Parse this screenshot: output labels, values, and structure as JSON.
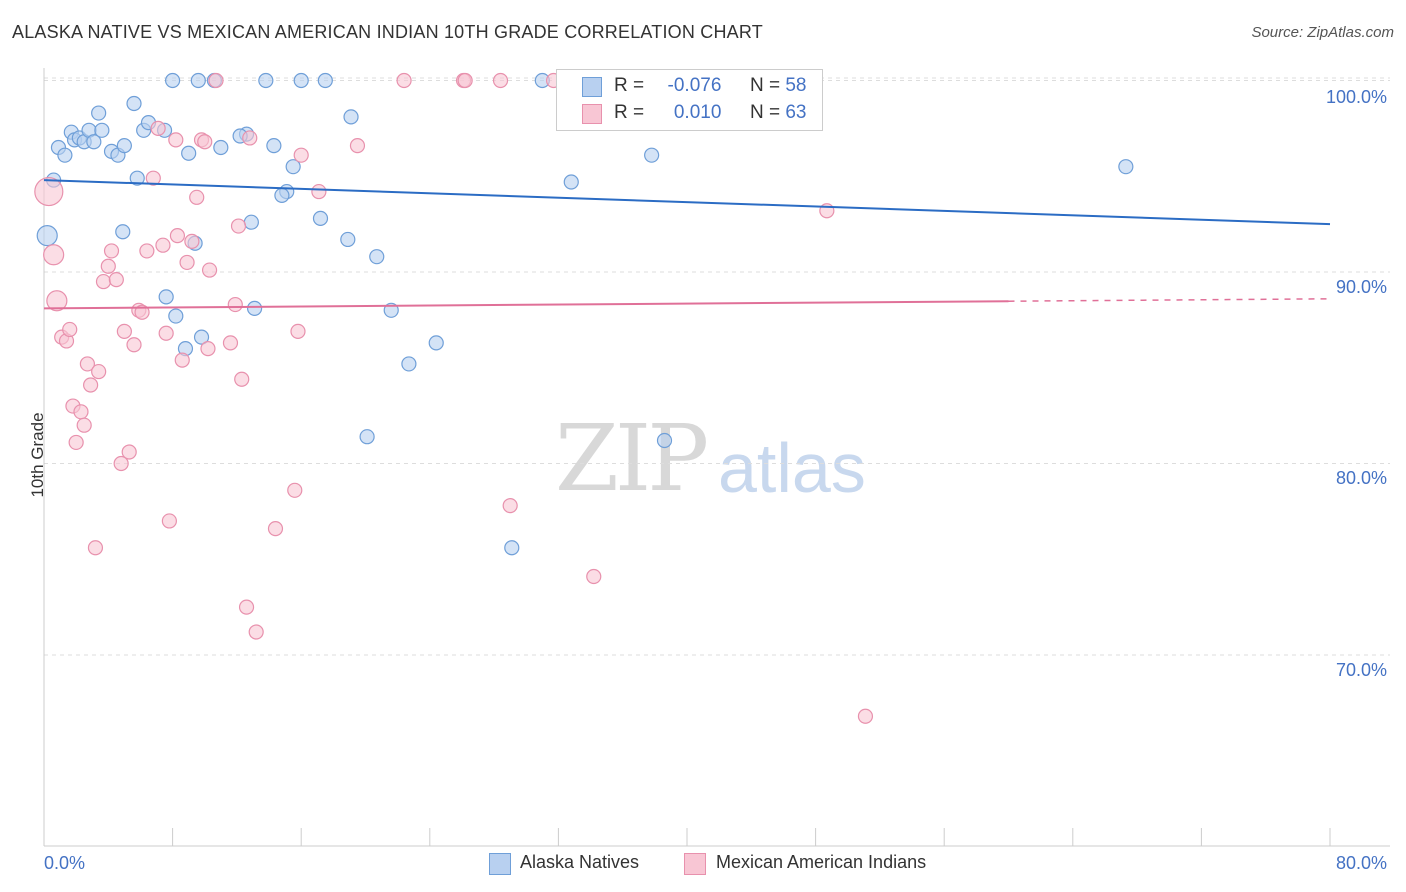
{
  "header": {
    "title": "ALASKA NATIVE VS MEXICAN AMERICAN INDIAN 10TH GRADE CORRELATION CHART",
    "source": "Source: ZipAtlas.com"
  },
  "watermark": {
    "zip": "ZIP",
    "atlas": "atlas"
  },
  "legend_box": {
    "rows": [
      {
        "r_label": "R =",
        "r_value": "-0.076",
        "n_label": "N =",
        "n_value": "58"
      },
      {
        "r_label": "R =",
        "r_value": "0.010",
        "n_label": "N =",
        "n_value": "63"
      }
    ]
  },
  "colors": {
    "blue_fill": "#b8d0f0",
    "blue_stroke": "#6f9fd8",
    "blue_line": "#2b6cc4",
    "pink_fill": "#f8c6d4",
    "pink_stroke": "#e891ad",
    "pink_line": "#e07098",
    "grid": "#dddddd",
    "tick_text": "#4472c4"
  },
  "chart_data": {
    "type": "scatter",
    "title": "ALASKA NATIVE VS MEXICAN AMERICAN INDIAN 10TH GRADE CORRELATION CHART",
    "xlabel": "",
    "ylabel": "10th Grade",
    "xlim": [
      0,
      80
    ],
    "ylim": [
      60,
      101.5
    ],
    "x_tick_labels": [
      "0.0%",
      "80.0%"
    ],
    "y_ticks": [
      70,
      80,
      90,
      100
    ],
    "y_tick_labels": [
      "70.0%",
      "80.0%",
      "90.0%",
      "100.0%"
    ],
    "grid": true,
    "legend_position": "bottom",
    "series": [
      {
        "name": "Alaska Natives",
        "color": "#6f9fd8",
        "trend": {
          "x": [
            0,
            80
          ],
          "y": [
            94.8,
            92.5
          ]
        },
        "points": [
          [
            0.2,
            91.9
          ],
          [
            0.6,
            94.8
          ],
          [
            0.9,
            96.5
          ],
          [
            1.3,
            96.1
          ],
          [
            1.7,
            97.3
          ],
          [
            1.9,
            96.9
          ],
          [
            2.2,
            97.0
          ],
          [
            2.5,
            96.8
          ],
          [
            2.8,
            97.4
          ],
          [
            3.1,
            96.8
          ],
          [
            3.4,
            98.3
          ],
          [
            3.6,
            97.4
          ],
          [
            4.2,
            96.3
          ],
          [
            4.6,
            96.1
          ],
          [
            5.0,
            96.6
          ],
          [
            5.6,
            98.8
          ],
          [
            5.8,
            94.9
          ],
          [
            6.2,
            97.4
          ],
          [
            6.5,
            97.8
          ],
          [
            7.5,
            97.4
          ],
          [
            8.0,
            100
          ],
          [
            9.0,
            96.2
          ],
          [
            9.4,
            91.5
          ],
          [
            7.6,
            88.7
          ],
          [
            4.9,
            92.1
          ],
          [
            8.2,
            87.7
          ],
          [
            8.8,
            86.0
          ],
          [
            9.8,
            86.6
          ],
          [
            10.6,
            100
          ],
          [
            11.0,
            96.5
          ],
          [
            12.6,
            97.2
          ],
          [
            12.9,
            92.6
          ],
          [
            13.1,
            88.1
          ],
          [
            14.3,
            96.6
          ],
          [
            15.1,
            94.2
          ],
          [
            15.5,
            95.5
          ],
          [
            14.8,
            94.0
          ],
          [
            16.0,
            100
          ],
          [
            17.5,
            100
          ],
          [
            17.2,
            92.8
          ],
          [
            18.9,
            91.7
          ],
          [
            19.1,
            98.1
          ],
          [
            20.7,
            90.8
          ],
          [
            21.6,
            88.0
          ],
          [
            22.7,
            85.2
          ],
          [
            24.4,
            86.3
          ],
          [
            20.1,
            81.4
          ],
          [
            29.1,
            75.6
          ],
          [
            31.0,
            100
          ],
          [
            32.8,
            94.7
          ],
          [
            37.8,
            96.1
          ],
          [
            38.6,
            81.2
          ],
          [
            41.7,
            100
          ],
          [
            44.8,
            100
          ],
          [
            67.3,
            95.5
          ],
          [
            12.2,
            97.1
          ],
          [
            13.8,
            100
          ],
          [
            9.6,
            100
          ]
        ],
        "radii": [
          10,
          7,
          7,
          7,
          7,
          7,
          7,
          7,
          7,
          7,
          7,
          7,
          7,
          7,
          7,
          7,
          7,
          7,
          7,
          7,
          7,
          7,
          7,
          7,
          7,
          7,
          7,
          7,
          7,
          7,
          7,
          7,
          7,
          7,
          7,
          7,
          7,
          7,
          7,
          7,
          7,
          7,
          7,
          7,
          7,
          7,
          7,
          7,
          7,
          7,
          7,
          7,
          7,
          7,
          7,
          7,
          7,
          7
        ]
      },
      {
        "name": "Mexican American Indians",
        "color": "#e891ad",
        "trend": {
          "x": [
            0,
            80
          ],
          "y": [
            88.1,
            88.6
          ],
          "solid_until_x": 60
        },
        "points": [
          [
            0.3,
            94.2
          ],
          [
            0.6,
            90.9
          ],
          [
            0.8,
            88.5
          ],
          [
            1.1,
            86.6
          ],
          [
            1.4,
            86.4
          ],
          [
            1.6,
            87.0
          ],
          [
            1.8,
            83.0
          ],
          [
            2.0,
            81.1
          ],
          [
            2.3,
            82.7
          ],
          [
            2.5,
            82.0
          ],
          [
            2.7,
            85.2
          ],
          [
            2.9,
            84.1
          ],
          [
            3.2,
            75.6
          ],
          [
            3.4,
            84.8
          ],
          [
            3.7,
            89.5
          ],
          [
            4.0,
            90.3
          ],
          [
            4.2,
            91.1
          ],
          [
            4.5,
            89.6
          ],
          [
            4.8,
            80.0
          ],
          [
            5.0,
            86.9
          ],
          [
            5.3,
            80.6
          ],
          [
            5.6,
            86.2
          ],
          [
            5.9,
            88.0
          ],
          [
            6.1,
            87.9
          ],
          [
            6.4,
            91.1
          ],
          [
            6.8,
            94.9
          ],
          [
            7.1,
            97.5
          ],
          [
            7.4,
            91.4
          ],
          [
            7.6,
            86.8
          ],
          [
            7.8,
            77.0
          ],
          [
            8.2,
            96.9
          ],
          [
            8.3,
            91.9
          ],
          [
            8.6,
            85.4
          ],
          [
            8.9,
            90.5
          ],
          [
            9.2,
            91.6
          ],
          [
            9.5,
            93.9
          ],
          [
            9.8,
            96.9
          ],
          [
            10.2,
            86.0
          ],
          [
            10.3,
            90.1
          ],
          [
            10.7,
            100
          ],
          [
            11.6,
            86.3
          ],
          [
            11.9,
            88.3
          ],
          [
            12.1,
            92.4
          ],
          [
            12.3,
            84.4
          ],
          [
            12.6,
            72.5
          ],
          [
            12.8,
            97.0
          ],
          [
            13.2,
            71.2
          ],
          [
            14.4,
            76.6
          ],
          [
            15.6,
            78.6
          ],
          [
            15.8,
            86.9
          ],
          [
            16.0,
            96.1
          ],
          [
            17.1,
            94.2
          ],
          [
            19.5,
            96.6
          ],
          [
            22.4,
            100
          ],
          [
            26.1,
            100
          ],
          [
            26.2,
            100
          ],
          [
            28.4,
            100
          ],
          [
            29.0,
            77.8
          ],
          [
            31.7,
            100
          ],
          [
            34.2,
            74.1
          ],
          [
            48.7,
            93.2
          ],
          [
            51.1,
            66.8
          ],
          [
            10.0,
            96.8
          ]
        ],
        "radii": [
          14,
          10,
          10,
          7,
          7,
          7,
          7,
          7,
          7,
          7,
          7,
          7,
          7,
          7,
          7,
          7,
          7,
          7,
          7,
          7,
          7,
          7,
          7,
          7,
          7,
          7,
          7,
          7,
          7,
          7,
          7,
          7,
          7,
          7,
          7,
          7,
          7,
          7,
          7,
          7,
          7,
          7,
          7,
          7,
          7,
          7,
          7,
          7,
          7,
          7,
          7,
          7,
          7,
          7,
          7,
          7,
          7,
          7,
          7,
          7,
          7,
          7,
          7
        ]
      }
    ]
  }
}
